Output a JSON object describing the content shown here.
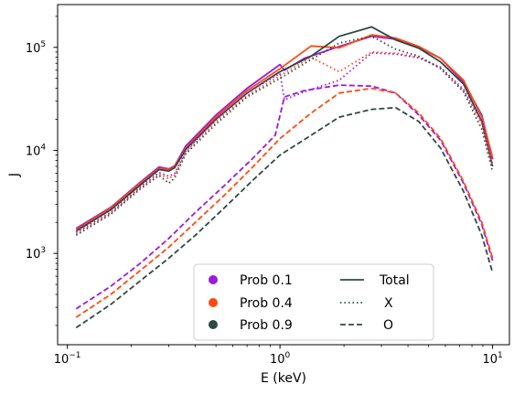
{
  "chart_data": {
    "type": "line",
    "title": "",
    "xlabel": "E (keV)",
    "ylabel": "J",
    "xscale": "log",
    "yscale": "log",
    "xlim": [
      0.09,
      12
    ],
    "ylim": [
      130,
      260000
    ],
    "x_ticks": [
      {
        "value": 0.1,
        "base": "10",
        "exp": "−1"
      },
      {
        "value": 1,
        "base": "10",
        "exp": "0"
      },
      {
        "value": 10,
        "base": "10",
        "exp": "1"
      }
    ],
    "y_ticks": [
      {
        "value": 1000,
        "base": "10",
        "exp": "3"
      },
      {
        "value": 10000,
        "base": "10",
        "exp": "4"
      },
      {
        "value": 100000,
        "base": "10",
        "exp": "5"
      }
    ],
    "legend": {
      "placement": "lower-center",
      "colors": [
        {
          "label": "Prob 0.1",
          "color": "#9b19e0"
        },
        {
          "label": "Prob 0.4",
          "color": "#ff4a0f"
        },
        {
          "label": "Prob 0.9",
          "color": "#2e4a45"
        }
      ],
      "styles": [
        {
          "label": "Total",
          "dash": "solid"
        },
        {
          "label": "X",
          "dash": "dotted"
        },
        {
          "label": "O",
          "dash": "dashed"
        }
      ]
    },
    "series": [
      {
        "prob": "0.1",
        "component": "Total",
        "color": "#9b19e0",
        "dash": "solid",
        "x": [
          0.11,
          0.16,
          0.22,
          0.27,
          0.3,
          0.32,
          0.36,
          0.5,
          0.7,
          1.0,
          1.05,
          1.3,
          1.9,
          2.7,
          3.5,
          4.5,
          5.7,
          7.3,
          8.9,
          10
        ],
        "y": [
          1750,
          2800,
          4900,
          6900,
          6600,
          7100,
          11000,
          22000,
          40000,
          68000,
          60000,
          78000,
          102000,
          128000,
          120000,
          100000,
          78000,
          46000,
          22000,
          8200
        ]
      },
      {
        "prob": "0.4",
        "component": "Total",
        "color": "#ff4a0f",
        "dash": "solid",
        "x": [
          0.11,
          0.16,
          0.22,
          0.27,
          0.3,
          0.32,
          0.36,
          0.5,
          0.7,
          1.0,
          1.4,
          1.9,
          2.7,
          3.5,
          4.5,
          5.7,
          7.3,
          8.9,
          10
        ],
        "y": [
          1700,
          2750,
          4800,
          6700,
          6500,
          7000,
          10500,
          21000,
          38000,
          62000,
          103000,
          99000,
          132000,
          123000,
          102000,
          78000,
          48000,
          21000,
          8500
        ]
      },
      {
        "prob": "0.9",
        "component": "Total",
        "color": "#2e4a45",
        "dash": "solid",
        "x": [
          0.11,
          0.16,
          0.22,
          0.27,
          0.3,
          0.32,
          0.36,
          0.5,
          0.7,
          1.0,
          1.4,
          1.9,
          2.7,
          3.5,
          4.5,
          5.7,
          7.3,
          8.9,
          10
        ],
        "y": [
          1650,
          2650,
          4600,
          6500,
          6300,
          6800,
          10200,
          20000,
          36000,
          58000,
          82000,
          128000,
          158000,
          118000,
          98000,
          72000,
          44000,
          19000,
          7000
        ]
      },
      {
        "prob": "0.1",
        "component": "X",
        "color": "#9b19e0",
        "dash": "dotted",
        "x": [
          0.11,
          0.16,
          0.22,
          0.27,
          0.3,
          0.32,
          0.36,
          0.5,
          0.7,
          1.0,
          1.05,
          1.3,
          1.9,
          2.7,
          3.5,
          4.5,
          5.7,
          7.3,
          8.9,
          10
        ],
        "y": [
          1600,
          2500,
          4400,
          6100,
          5600,
          6000,
          9800,
          20000,
          36000,
          56000,
          31000,
          37000,
          48000,
          88000,
          86000,
          79000,
          64000,
          39000,
          19000,
          7200
        ]
      },
      {
        "prob": "0.4",
        "component": "X",
        "color": "#ff4a0f",
        "dash": "dotted",
        "x": [
          0.11,
          0.16,
          0.22,
          0.27,
          0.3,
          0.32,
          0.36,
          0.5,
          0.7,
          1.0,
          1.4,
          1.9,
          2.7,
          3.5,
          4.5,
          5.7,
          7.3,
          8.9,
          10
        ],
        "y": [
          1550,
          2450,
          4300,
          5900,
          5300,
          5800,
          9500,
          19000,
          34000,
          53000,
          80000,
          58000,
          90000,
          88000,
          80000,
          63000,
          38000,
          18000,
          7000
        ]
      },
      {
        "prob": "0.9",
        "component": "X",
        "color": "#2e4a45",
        "dash": "dotted",
        "x": [
          0.11,
          0.16,
          0.22,
          0.27,
          0.3,
          0.32,
          0.36,
          0.5,
          0.7,
          1.0,
          1.4,
          1.9,
          2.7,
          3.5,
          4.5,
          5.7,
          7.3,
          8.9,
          10
        ],
        "y": [
          1500,
          2400,
          4200,
          5700,
          4800,
          5400,
          9200,
          18000,
          33000,
          50000,
          76000,
          110000,
          128000,
          96000,
          82000,
          62000,
          37000,
          16000,
          6200
        ]
      },
      {
        "prob": "0.1",
        "component": "O",
        "color": "#9b19e0",
        "dash": "dashed",
        "x": [
          0.11,
          0.16,
          0.22,
          0.3,
          0.4,
          0.55,
          0.75,
          0.95,
          1.05,
          1.3,
          1.9,
          2.7,
          3.5,
          4.5,
          5.7,
          7.3,
          8.9,
          10
        ],
        "y": [
          290,
          480,
          800,
          1400,
          2500,
          4600,
          8500,
          14000,
          33000,
          38000,
          43000,
          42000,
          36000,
          22000,
          12500,
          4800,
          1900,
          850
        ]
      },
      {
        "prob": "0.4",
        "component": "O",
        "color": "#ff4a0f",
        "dash": "dashed",
        "x": [
          0.11,
          0.16,
          0.22,
          0.3,
          0.4,
          0.55,
          0.75,
          1.0,
          1.4,
          1.9,
          2.7,
          3.5,
          4.5,
          5.7,
          7.3,
          8.9,
          10
        ],
        "y": [
          240,
          400,
          680,
          1150,
          2000,
          3700,
          7000,
          13000,
          23000,
          36000,
          40000,
          36000,
          23000,
          13000,
          5000,
          2000,
          900
        ]
      },
      {
        "prob": "0.9",
        "component": "O",
        "color": "#2e4a45",
        "dash": "dashed",
        "x": [
          0.11,
          0.16,
          0.22,
          0.3,
          0.4,
          0.55,
          0.75,
          1.0,
          1.4,
          1.9,
          2.7,
          3.5,
          4.5,
          5.7,
          7.3,
          8.9,
          10
        ],
        "y": [
          190,
          320,
          540,
          900,
          1500,
          2800,
          5200,
          9000,
          14000,
          21000,
          25000,
          26000,
          19000,
          10500,
          4000,
          1500,
          650
        ]
      }
    ]
  }
}
